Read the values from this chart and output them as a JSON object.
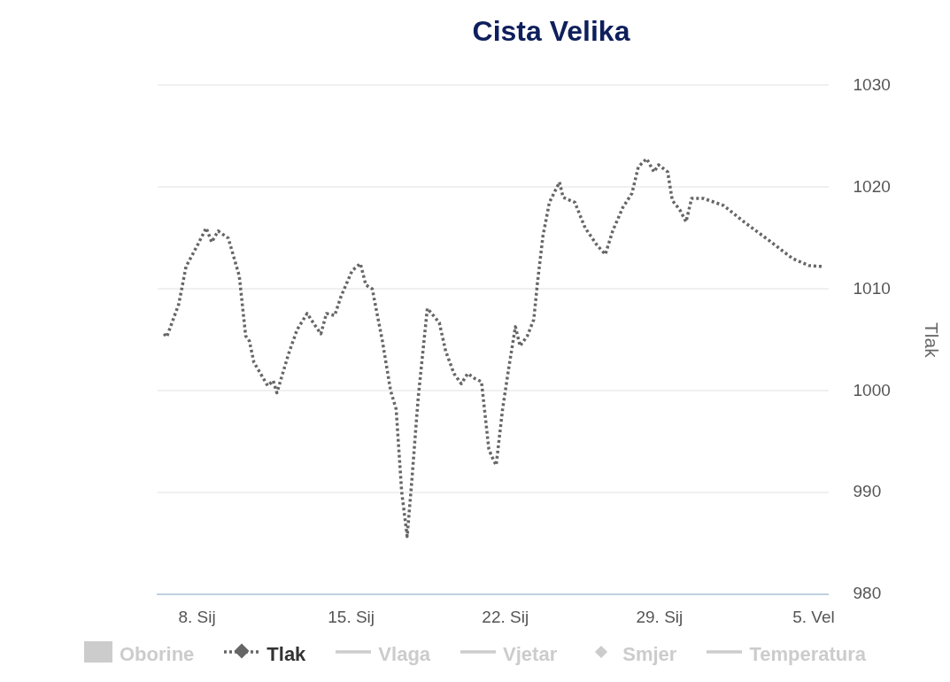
{
  "chart_data": {
    "type": "line",
    "title": "Cista Velika",
    "y2label": "Tlak",
    "y2lim": [
      980,
      1030
    ],
    "y2ticks": [
      980,
      990,
      1000,
      1010,
      1020,
      1030
    ],
    "xlim": [
      "--01-06T05:00",
      "--02-05T16:00"
    ],
    "xticks": [
      {
        "value": "--01-08",
        "label": "8. Sij"
      },
      {
        "value": "--01-15",
        "label": "15. Sij"
      },
      {
        "value": "--01-22",
        "label": "22. Sij"
      },
      {
        "value": "--01-29",
        "label": "29. Sij"
      },
      {
        "value": "--02-05",
        "label": "5. Vel"
      }
    ],
    "grid": "y",
    "legend": "bottom",
    "series": [
      {
        "name": "Oborine",
        "type": "bar",
        "color": "#cccccc"
      },
      {
        "name": "Tlak",
        "axis": "y2",
        "color": "#666666",
        "line_style": "dotted",
        "x": [
          "--01-06T12:00",
          "--01-06T15:00",
          "--01-07T04:00",
          "--01-07T12:00",
          "--01-08T01:00",
          "--01-08T10:00",
          "--01-08T16:00",
          "--01-08T23:00",
          "--01-09T10:00",
          "--01-09T22:00",
          "--01-10T05:00",
          "--01-10T09:00",
          "--01-10T14:00",
          "--01-11T05:00",
          "--01-11T11:00",
          "--01-11T15:00",
          "--01-12T04:00",
          "--01-12T13:00",
          "--01-13T00:00",
          "--01-13T08:00",
          "--01-13T15:00",
          "--01-13T21:00",
          "--01-14T06:00",
          "--01-14T13:00",
          "--01-15T01:00",
          "--01-15T10:00",
          "--01-15T16:00",
          "--01-15T23:00",
          "--01-16T10:00",
          "--01-16T19:00",
          "--01-17T01:00",
          "--01-17T07:00",
          "--01-17T13:00",
          "--01-17T18:00",
          "--01-18T01:00",
          "--01-18T11:00",
          "--01-19T00:00",
          "--01-19T07:00",
          "--01-19T16:00",
          "--01-20T00:00",
          "--01-20T07:00",
          "--01-20T15:00",
          "--01-20T22:00",
          "--01-21T06:00",
          "--01-21T09:00",
          "--01-21T14:00",
          "--01-21T21:00",
          "--01-22T04:00",
          "--01-22T11:00",
          "--01-22T16:00",
          "--01-23T00:00",
          "--01-23T07:00",
          "--01-23T11:00",
          "--01-23T17:00",
          "--01-24T00:00",
          "--01-24T11:00",
          "--01-24T15:00",
          "--01-25T04:00",
          "--01-25T06:00",
          "--01-25T15:00",
          "--01-26T04:00",
          "--01-26T13:00",
          "--01-26T21:00",
          "--01-27T08:00",
          "--01-27T18:00",
          "--01-28T01:00",
          "--01-28T10:00",
          "--01-28T18:00",
          "--01-28T23:00",
          "--01-29T09:00",
          "--01-29T14:00",
          "--01-29T22:00",
          "--01-30T05:00",
          "--01-30T11:00",
          "--01-31T00:00",
          "--01-31T22:00",
          "--02-01T20:00",
          "--02-02T23:00",
          "--02-04T01:00",
          "--02-04T19:00",
          "--02-05T11:00"
        ],
        "values": [
          1005.6,
          1005.3,
          1008.5,
          1012.2,
          1014.4,
          1016.0,
          1014.6,
          1015.7,
          1015.0,
          1011.3,
          1005.4,
          1004.9,
          1002.8,
          1000.5,
          1001.0,
          999.8,
          1003.7,
          1006.0,
          1007.6,
          1006.5,
          1005.6,
          1007.6,
          1007.4,
          1009.3,
          1011.8,
          1012.5,
          1010.4,
          1010.0,
          1004.9,
          1000.0,
          998.2,
          990.1,
          985.7,
          991.1,
          999.3,
          1008.1,
          1006.7,
          1003.9,
          1001.7,
          1000.7,
          1001.7,
          1001.2,
          1000.9,
          994.3,
          993.6,
          992.7,
          998.2,
          1002.4,
          1006.3,
          1004.4,
          1005.4,
          1007.0,
          1010.6,
          1015.2,
          1018.5,
          1020.5,
          1019.0,
          1018.5,
          1018.0,
          1016.0,
          1014.3,
          1013.4,
          1015.7,
          1018.0,
          1019.4,
          1022.0,
          1022.8,
          1021.5,
          1022.2,
          1021.5,
          1018.7,
          1017.8,
          1016.6,
          1018.9,
          1018.9,
          1018.2,
          1016.6,
          1014.8,
          1013.0,
          1012.3,
          1012.2
        ]
      },
      {
        "name": "Vlaga",
        "type": "line",
        "color": "#cccccc"
      },
      {
        "name": "Vjetar",
        "type": "line",
        "color": "#cccccc"
      },
      {
        "name": "Smjer",
        "type": "scatter",
        "color": "#cccccc"
      },
      {
        "name": "Temperatura",
        "type": "line",
        "color": "#cccccc"
      }
    ]
  }
}
